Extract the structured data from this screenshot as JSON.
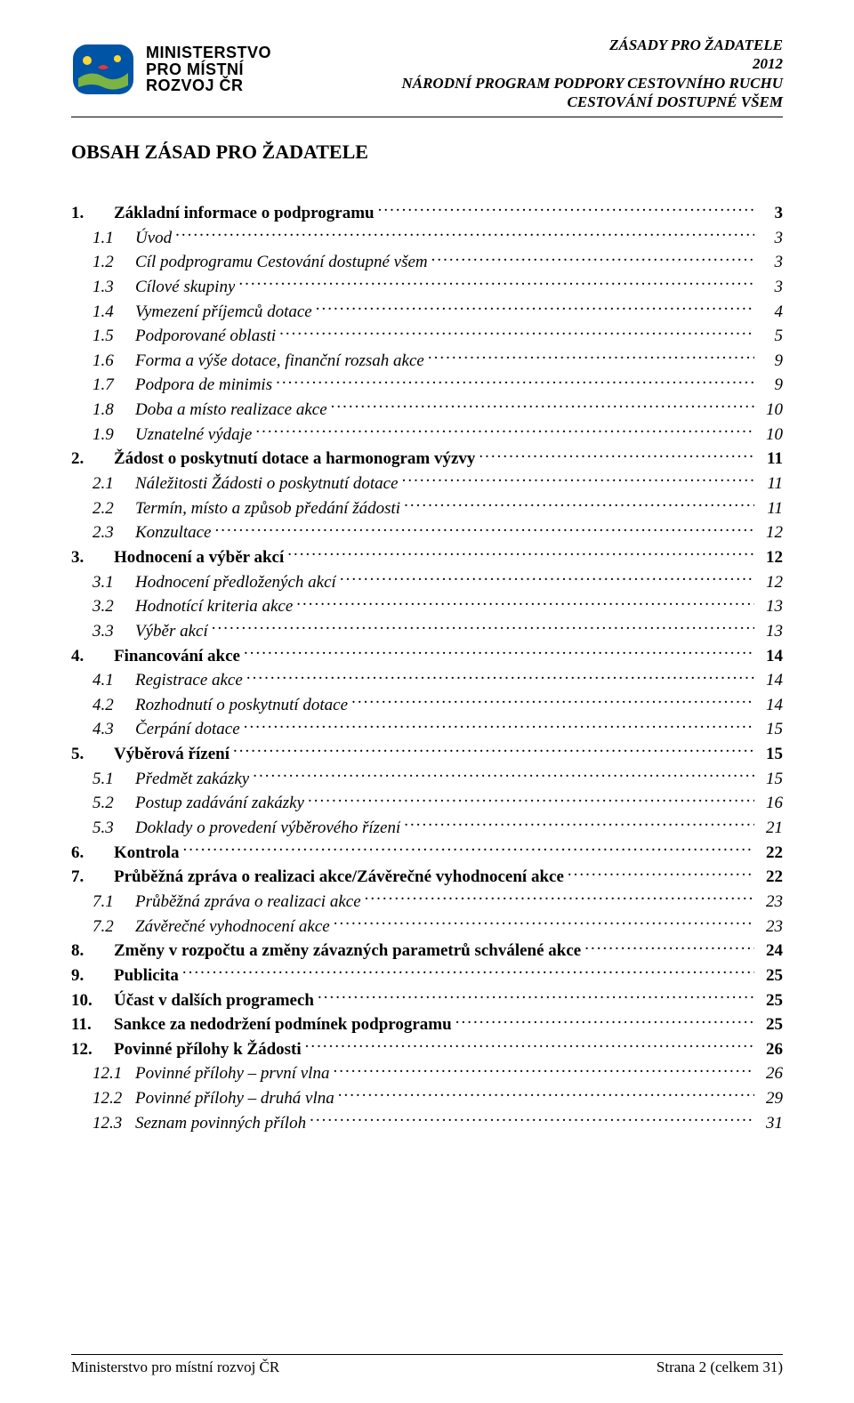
{
  "header": {
    "ministry_line1": "MINISTERSTVO",
    "ministry_line2": "PRO MÍSTNÍ",
    "ministry_line3": "ROZVOJ ČR",
    "right_line1": "ZÁSADY PRO ŽADATELE",
    "right_line2": "2012",
    "right_line3": "NÁRODNÍ PROGRAM PODPORY CESTOVNÍHO RUCHU",
    "right_line4": "CESTOVÁNÍ DOSTUPNÉ VŠEM"
  },
  "title": "OBSAH ZÁSAD PRO ŽADATELE",
  "toc": [
    {
      "level": 0,
      "num": "1.",
      "label": "Základní informace o podprogramu",
      "page": "3"
    },
    {
      "level": 1,
      "num": "1.1",
      "label": "Úvod",
      "page": "3"
    },
    {
      "level": 1,
      "num": "1.2",
      "label": "Cíl podprogramu Cestování dostupné všem",
      "page": "3"
    },
    {
      "level": 1,
      "num": "1.3",
      "label": "Cílové skupiny",
      "page": "3"
    },
    {
      "level": 1,
      "num": "1.4",
      "label": "Vymezení příjemců dotace",
      "page": "4"
    },
    {
      "level": 1,
      "num": "1.5",
      "label": "Podporované oblasti",
      "page": "5"
    },
    {
      "level": 1,
      "num": "1.6",
      "label": "Forma a výše dotace, finanční rozsah akce",
      "page": "9"
    },
    {
      "level": 1,
      "num": "1.7",
      "label": "Podpora de minimis",
      "page": "9"
    },
    {
      "level": 1,
      "num": "1.8",
      "label": "Doba a místo realizace akce",
      "page": "10"
    },
    {
      "level": 1,
      "num": "1.9",
      "label": "Uznatelné výdaje",
      "page": "10"
    },
    {
      "level": 0,
      "num": "2.",
      "label": "Žádost o poskytnutí dotace a harmonogram výzvy",
      "page": "11"
    },
    {
      "level": 1,
      "num": "2.1",
      "label": "Náležitosti Žádosti o poskytnutí dotace",
      "page": "11"
    },
    {
      "level": 1,
      "num": "2.2",
      "label": "Termín, místo a způsob předání žádosti",
      "page": "11"
    },
    {
      "level": 1,
      "num": "2.3",
      "label": "Konzultace",
      "page": "12"
    },
    {
      "level": 0,
      "num": "3.",
      "label": "Hodnocení a výběr akcí",
      "page": "12"
    },
    {
      "level": 1,
      "num": "3.1",
      "label": "Hodnocení předložených akcí",
      "page": "12"
    },
    {
      "level": 1,
      "num": "3.2",
      "label": "Hodnotící kriteria akce",
      "page": "13"
    },
    {
      "level": 1,
      "num": "3.3",
      "label": "Výběr akcí",
      "page": "13"
    },
    {
      "level": 0,
      "num": "4.",
      "label": "Financování akce",
      "page": "14"
    },
    {
      "level": 1,
      "num": "4.1",
      "label": "Registrace akce",
      "page": "14"
    },
    {
      "level": 1,
      "num": "4.2",
      "label": "Rozhodnutí o poskytnutí dotace",
      "page": "14"
    },
    {
      "level": 1,
      "num": "4.3",
      "label": "Čerpání dotace",
      "page": "15"
    },
    {
      "level": 0,
      "num": "5.",
      "label": "Výběrová řízení",
      "page": "15"
    },
    {
      "level": 1,
      "num": "5.1",
      "label": "Předmět zakázky",
      "page": "15"
    },
    {
      "level": 1,
      "num": "5.2",
      "label": "Postup zadávání zakázky",
      "page": "16"
    },
    {
      "level": 1,
      "num": "5.3",
      "label": "Doklady o provedení výběrového řízení",
      "page": "21"
    },
    {
      "level": 0,
      "num": "6.",
      "label": "Kontrola",
      "page": "22"
    },
    {
      "level": 0,
      "num": "7.",
      "label": "Průběžná zpráva o realizaci akce/Závěrečné vyhodnocení akce",
      "page": "22"
    },
    {
      "level": 1,
      "num": "7.1",
      "label": "Průběžná zpráva o realizaci akce",
      "page": "23"
    },
    {
      "level": 1,
      "num": "7.2",
      "label": "Závěrečné vyhodnocení akce",
      "page": "23"
    },
    {
      "level": 0,
      "num": "8.",
      "label": "Změny v rozpočtu a změny závazných parametrů schválené akce",
      "page": "24"
    },
    {
      "level": 0,
      "num": "9.",
      "label": "Publicita",
      "page": "25"
    },
    {
      "level": 0,
      "num": "10.",
      "label": "Účast v dalších programech",
      "page": "25"
    },
    {
      "level": 0,
      "num": "11.",
      "label": "Sankce za nedodržení podmínek podprogramu",
      "page": "25"
    },
    {
      "level": 0,
      "num": "12.",
      "label": "Povinné přílohy k Žádosti",
      "page": "26"
    },
    {
      "level": 1,
      "num": "12.1",
      "label": "Povinné přílohy – první vlna",
      "page": "26"
    },
    {
      "level": 1,
      "num": "12.2",
      "label": "Povinné přílohy – druhá vlna",
      "page": "29"
    },
    {
      "level": 1,
      "num": "12.3",
      "label": "Seznam povinných příloh",
      "page": "31"
    }
  ],
  "footer": {
    "left": "Ministerstvo pro místní rozvoj ČR",
    "right": "Strana 2 (celkem 31)"
  },
  "colors": {
    "text": "#000000",
    "background": "#ffffff",
    "logo_blue": "#0054a6",
    "logo_green": "#7cb342",
    "logo_yellow": "#fdd835",
    "logo_red": "#e53935"
  }
}
